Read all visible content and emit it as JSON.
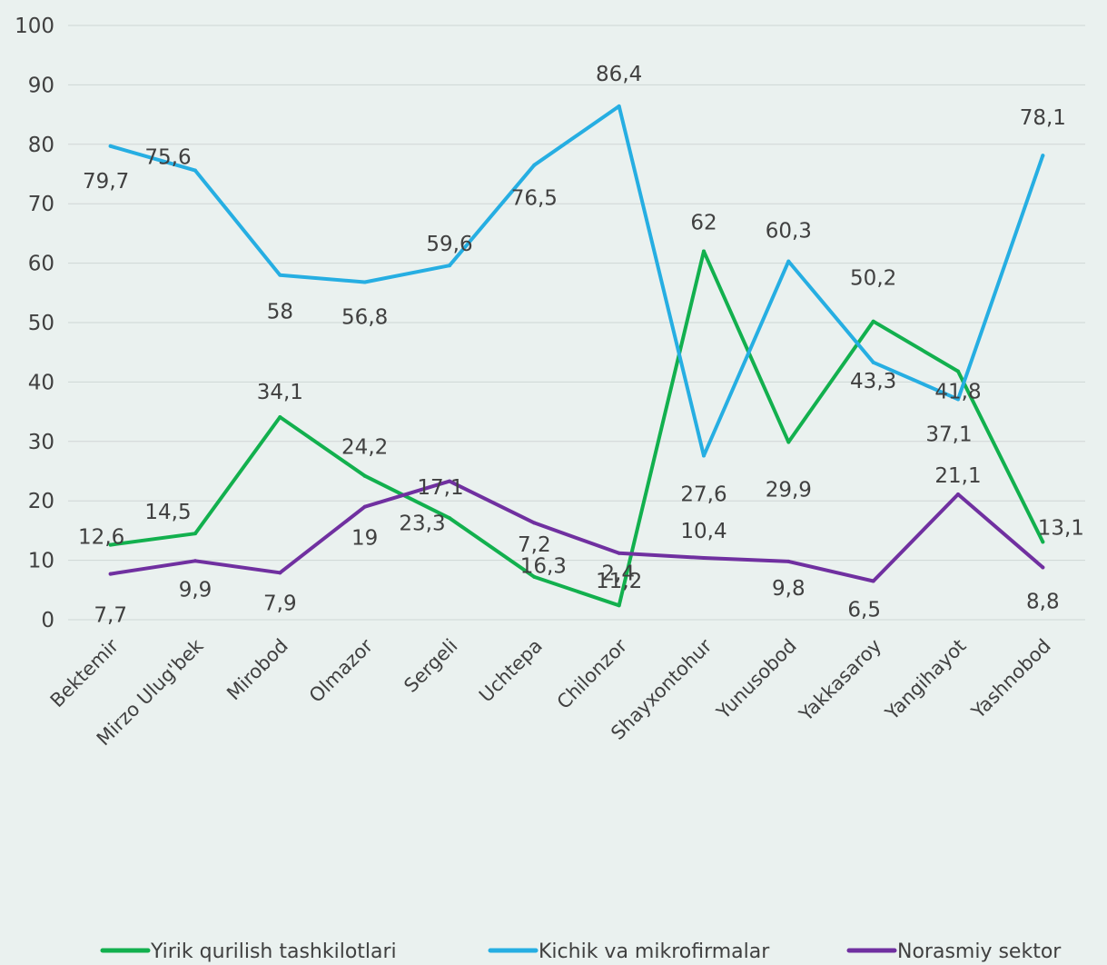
{
  "chart_data": {
    "type": "line",
    "categories": [
      "Bektemir",
      "Mirzo Ulug'bek",
      "Mirobod",
      "Olmazor",
      "Sergeli",
      "Uchtepa",
      "Chilonzor",
      "Shayxontohur",
      "Yunusobod",
      "Yakkasaroy",
      "Yangihayot",
      "Yashnobod"
    ],
    "series": [
      {
        "name": "Yirik qurilish tashkilotlari",
        "color": "#12b04e",
        "values": [
          12.6,
          14.5,
          34.1,
          24.2,
          17.1,
          7.2,
          2.4,
          62,
          29.9,
          50.2,
          41.8,
          13.1
        ],
        "labels": [
          "12,6",
          "14,5",
          "34,1",
          "24,2",
          "17,1",
          "7,2",
          "2,4",
          "62",
          "29,9",
          "50,2",
          "41,8",
          "13,1"
        ]
      },
      {
        "name": "Kichik va mikrofirmalar",
        "color": "#26aee2",
        "values": [
          79.7,
          75.6,
          58,
          56.8,
          59.6,
          76.5,
          86.4,
          27.6,
          60.3,
          43.3,
          37.1,
          78.1
        ],
        "labels": [
          "79,7",
          "75,6",
          "58",
          "56,8",
          "59,6",
          "76,5",
          "86,4",
          "27,6",
          "60,3",
          "43,3",
          "37,1",
          "78,1"
        ]
      },
      {
        "name": "Norasmiy sektor",
        "color": "#7030a0",
        "values": [
          7.7,
          9.9,
          7.9,
          19,
          23.3,
          16.3,
          11.2,
          10.4,
          9.8,
          6.5,
          21.1,
          8.8
        ],
        "labels": [
          "7,7",
          "9,9",
          "7,9",
          "19",
          "23,3",
          "16,3",
          "11,2",
          "10,4",
          "9,8",
          "6,5",
          "21,1",
          "8,8"
        ]
      }
    ],
    "y_ticks": [
      "0",
      "10",
      "20",
      "30",
      "40",
      "50",
      "60",
      "70",
      "80",
      "90",
      "100"
    ],
    "ylim": [
      0,
      100
    ],
    "grid": true,
    "legend_position": "bottom"
  }
}
